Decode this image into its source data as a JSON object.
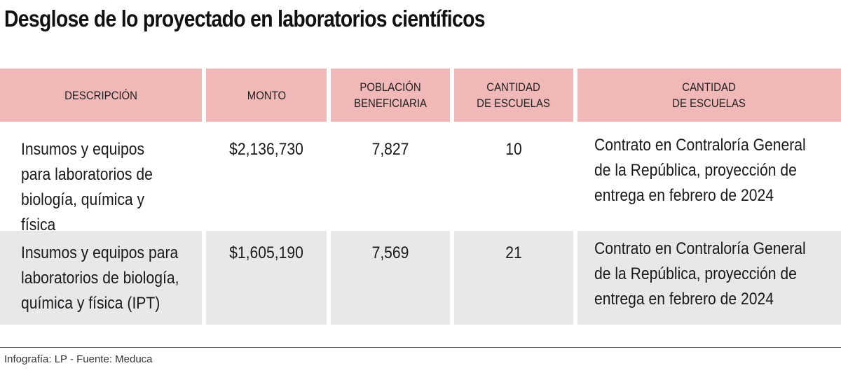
{
  "title": "Desglose de lo proyectado en laboratorios científicos",
  "table": {
    "headers": [
      "DESCRIPCIÓN",
      "MONTO",
      "POBLACIÓN\nBENEFICIARIA",
      "CANTIDAD\nDE ESCUELAS",
      "CANTIDAD\nDE ESCUELAS"
    ],
    "rows": [
      {
        "descripcion": "Insumos y equipos\npara laboratorios de\nbiología, química y física",
        "monto": "$2,136,730",
        "poblacion": "7,827",
        "escuelas": "10",
        "estado": "Contrato en Contraloría General\nde la República, proyección de\nentrega  en febrero  de  2024"
      },
      {
        "descripcion": "Insumos y equipos para\nlaboratorios de biología,\nquímica y física  (IPT)",
        "monto": "$1,605,190",
        "poblacion": "7,569",
        "escuelas": "21",
        "estado": "Contrato en Contraloría General\nde la República, proyección de\nentrega  en febrero  de  2024"
      }
    ]
  },
  "credit": "Infografía: LP - Fuente: Meduca",
  "colors": {
    "header_bg": "#f0b9b7",
    "row_alt_bg": "#e8e8e9"
  }
}
